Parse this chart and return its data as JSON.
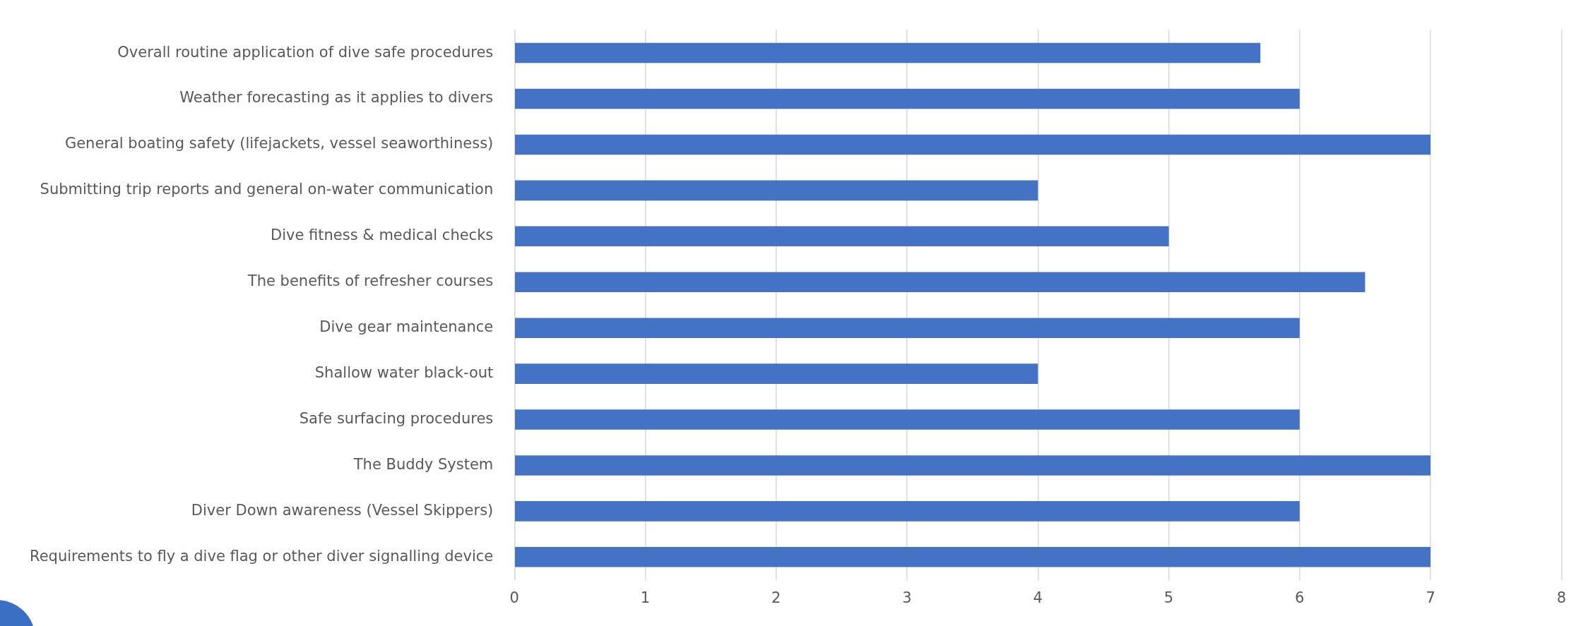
{
  "chart_data": {
    "type": "bar",
    "orientation": "horizontal",
    "categories": [
      "Overall routine application of dive safe procedures",
      "Weather forecasting as it applies to divers",
      "General boating safety (lifejackets, vessel seaworthiness)",
      "Submitting trip reports and general on-water communication",
      "Dive fitness & medical checks",
      "The benefits of refresher courses",
      "Dive gear maintenance",
      "Shallow water black-out",
      "Safe surfacing procedures",
      "The Buddy System",
      "Diver Down awareness (Vessel Skippers)",
      "Requirements to fly a dive flag or other diver signalling device"
    ],
    "values": [
      5.7,
      6,
      7,
      4,
      5,
      6.5,
      6,
      4,
      6,
      7,
      6,
      7
    ],
    "color": "#4472c4",
    "xlim": [
      0,
      8
    ],
    "xticks": [
      0,
      1,
      2,
      3,
      4,
      5,
      6,
      7,
      8
    ],
    "grid": "x",
    "legend": false
  }
}
